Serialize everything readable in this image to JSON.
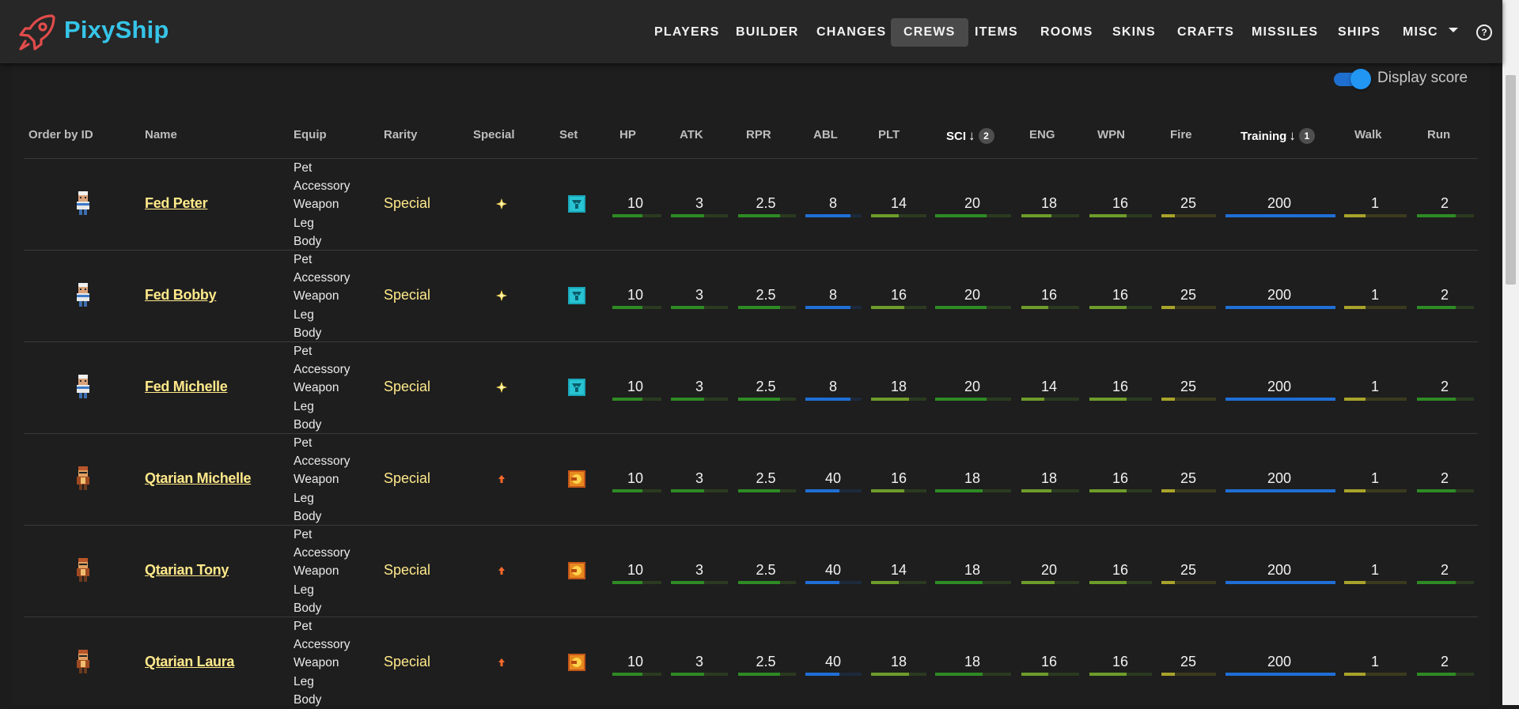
{
  "app": {
    "brand": "PixyShip",
    "nav": [
      "PLAYERS",
      "BUILDER",
      "CHANGES",
      "CREWS",
      "ITEMS",
      "ROOMS",
      "SKINS",
      "CRAFTS",
      "MISSILES",
      "SHIPS",
      "MISC"
    ],
    "active_nav": "CREWS",
    "help_glyph": "?"
  },
  "display_score": {
    "label": "Display score",
    "enabled": true
  },
  "table": {
    "headers": [
      "Order by ID",
      "Name",
      "Equip",
      "Rarity",
      "Special",
      "Set",
      "HP",
      "ATK",
      "RPR",
      "ABL",
      "PLT",
      "SCI",
      "ENG",
      "WPN",
      "Fire",
      "Training",
      "Walk",
      "Run"
    ],
    "sort": [
      {
        "column": "Training",
        "priority": "1",
        "direction": "desc"
      },
      {
        "column": "SCI",
        "priority": "2",
        "direction": "desc"
      }
    ],
    "stat_colors": {
      "green": "#2e8b24",
      "light_green": "#6e9c2a",
      "yellow": "#a8a32a",
      "blue": "#1f6fd6",
      "track": "#2b3a20",
      "yellow_track": "#3b3a1e",
      "blue_track": "#1d2a3c"
    },
    "rows": [
      {
        "name": "Fed Peter",
        "equip": [
          "Pet",
          "Accessory",
          "Weapon",
          "Leg",
          "Body"
        ],
        "rarity": "Special",
        "special_icon": "sparkle-icon",
        "set_icon": "teal-set-icon",
        "stats": {
          "HP": "10",
          "ATK": "3",
          "RPR": "2.5",
          "ABL": "8",
          "PLT": "14",
          "SCI": "20",
          "ENG": "18",
          "WPN": "16",
          "Fire": "25",
          "Training": "200",
          "Walk": "1",
          "Run": "2"
        },
        "fill": {
          "HP": 0.62,
          "ATK": 0.58,
          "RPR": 0.72,
          "ABL": 0.8,
          "PLT": 0.5,
          "SCI": 0.68,
          "ENG": 0.52,
          "WPN": 0.6,
          "Fire": 0.25,
          "Training": 1.0,
          "Walk": 0.34,
          "Run": 0.68
        }
      },
      {
        "name": "Fed Bobby",
        "equip": [
          "Pet",
          "Accessory",
          "Weapon",
          "Leg",
          "Body"
        ],
        "rarity": "Special",
        "special_icon": "sparkle-icon",
        "set_icon": "teal-set-icon",
        "stats": {
          "HP": "10",
          "ATK": "3",
          "RPR": "2.5",
          "ABL": "8",
          "PLT": "16",
          "SCI": "20",
          "ENG": "16",
          "WPN": "16",
          "Fire": "25",
          "Training": "200",
          "Walk": "1",
          "Run": "2"
        },
        "fill": {
          "HP": 0.62,
          "ATK": 0.58,
          "RPR": 0.72,
          "ABL": 0.8,
          "PLT": 0.6,
          "SCI": 0.68,
          "ENG": 0.46,
          "WPN": 0.6,
          "Fire": 0.25,
          "Training": 1.0,
          "Walk": 0.34,
          "Run": 0.68
        }
      },
      {
        "name": "Fed Michelle",
        "equip": [
          "Pet",
          "Accessory",
          "Weapon",
          "Leg",
          "Body"
        ],
        "rarity": "Special",
        "special_icon": "sparkle-icon",
        "set_icon": "teal-set-icon",
        "stats": {
          "HP": "10",
          "ATK": "3",
          "RPR": "2.5",
          "ABL": "8",
          "PLT": "18",
          "SCI": "20",
          "ENG": "14",
          "WPN": "16",
          "Fire": "25",
          "Training": "200",
          "Walk": "1",
          "Run": "2"
        },
        "fill": {
          "HP": 0.62,
          "ATK": 0.58,
          "RPR": 0.72,
          "ABL": 0.8,
          "PLT": 0.68,
          "SCI": 0.68,
          "ENG": 0.4,
          "WPN": 0.6,
          "Fire": 0.25,
          "Training": 1.0,
          "Walk": 0.34,
          "Run": 0.68
        }
      },
      {
        "name": "Qtarian Michelle",
        "equip": [
          "Pet",
          "Accessory",
          "Weapon",
          "Leg",
          "Body"
        ],
        "rarity": "Special",
        "special_icon": "arrow-up-icon",
        "set_icon": "orange-set-icon",
        "stats": {
          "HP": "10",
          "ATK": "3",
          "RPR": "2.5",
          "ABL": "40",
          "PLT": "16",
          "SCI": "18",
          "ENG": "18",
          "WPN": "16",
          "Fire": "25",
          "Training": "200",
          "Walk": "1",
          "Run": "2"
        },
        "fill": {
          "HP": 0.62,
          "ATK": 0.58,
          "RPR": 0.72,
          "ABL": 0.6,
          "PLT": 0.6,
          "SCI": 0.62,
          "ENG": 0.52,
          "WPN": 0.6,
          "Fire": 0.25,
          "Training": 1.0,
          "Walk": 0.34,
          "Run": 0.68
        }
      },
      {
        "name": "Qtarian Tony",
        "equip": [
          "Pet",
          "Accessory",
          "Weapon",
          "Leg",
          "Body"
        ],
        "rarity": "Special",
        "special_icon": "arrow-up-icon",
        "set_icon": "orange-set-icon",
        "stats": {
          "HP": "10",
          "ATK": "3",
          "RPR": "2.5",
          "ABL": "40",
          "PLT": "14",
          "SCI": "18",
          "ENG": "20",
          "WPN": "16",
          "Fire": "25",
          "Training": "200",
          "Walk": "1",
          "Run": "2"
        },
        "fill": {
          "HP": 0.62,
          "ATK": 0.58,
          "RPR": 0.72,
          "ABL": 0.6,
          "PLT": 0.5,
          "SCI": 0.62,
          "ENG": 0.58,
          "WPN": 0.6,
          "Fire": 0.25,
          "Training": 1.0,
          "Walk": 0.34,
          "Run": 0.68
        }
      },
      {
        "name": "Qtarian Laura",
        "equip": [
          "Pet",
          "Accessory",
          "Weapon",
          "Leg",
          "Body"
        ],
        "rarity": "Special",
        "special_icon": "arrow-up-icon",
        "set_icon": "orange-set-icon",
        "stats": {
          "HP": "10",
          "ATK": "3",
          "RPR": "2.5",
          "ABL": "40",
          "PLT": "18",
          "SCI": "18",
          "ENG": "16",
          "WPN": "16",
          "Fire": "25",
          "Training": "200",
          "Walk": "1",
          "Run": "2"
        },
        "fill": {
          "HP": 0.62,
          "ATK": 0.58,
          "RPR": 0.72,
          "ABL": 0.6,
          "PLT": 0.68,
          "SCI": 0.62,
          "ENG": 0.46,
          "WPN": 0.6,
          "Fire": 0.25,
          "Training": 1.0,
          "Walk": 0.34,
          "Run": 0.68
        }
      }
    ]
  }
}
